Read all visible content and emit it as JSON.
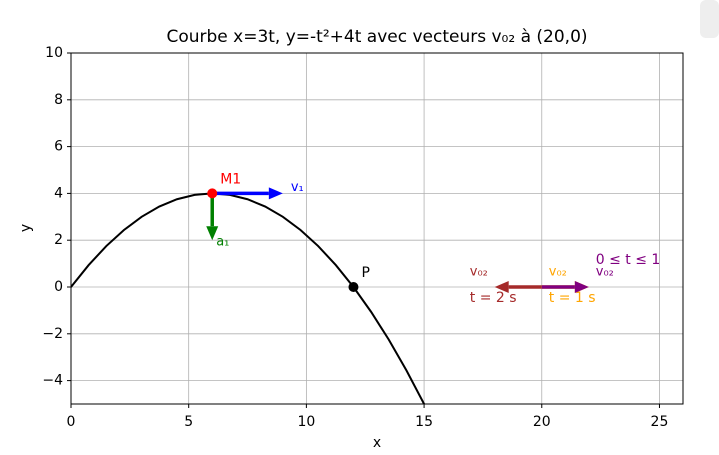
{
  "chart_data": {
    "type": "line",
    "title": "Courbe x=3t, y=-t²+4t avec vecteurs v₀₂ à (20,0)",
    "xlabel": "x",
    "ylabel": "y",
    "xlim": [
      0,
      26
    ],
    "ylim": [
      -5,
      10
    ],
    "xticks": [
      0,
      5,
      10,
      15,
      20,
      25
    ],
    "yticks": [
      {
        "value": -4,
        "label": "−4"
      },
      {
        "value": -2,
        "label": "−2"
      },
      0,
      2,
      4,
      6,
      8,
      10
    ],
    "grid": true,
    "series": [
      {
        "color": "#000000",
        "x": [
          0,
          0.75,
          1.5,
          2.25,
          3,
          3.75,
          4.5,
          5.25,
          6,
          6.75,
          7.5,
          8.25,
          9,
          9.75,
          10.5,
          11.25,
          12,
          12.75,
          13.5,
          14.25,
          15
        ],
        "values": [
          0,
          0.9375,
          1.75,
          2.4375,
          3,
          3.4375,
          3.75,
          3.9375,
          4,
          3.9375,
          3.75,
          3.4375,
          3,
          2.4375,
          1.75,
          0.9375,
          0,
          -1.0625,
          -2.25,
          -3.5625,
          -5
        ]
      }
    ],
    "points": [
      {
        "label": "M1",
        "x": 6,
        "y": 4,
        "color": "#ff0000"
      },
      {
        "label": "P",
        "x": 12,
        "y": 0,
        "color": "#000000"
      }
    ],
    "vectors": [
      {
        "label": "v₁",
        "x": 6,
        "y": 4,
        "dx": 3,
        "dy": 0,
        "color": "#0000ff"
      },
      {
        "label": "a₁",
        "x": 6,
        "y": 4,
        "dx": 0,
        "dy": -2,
        "color": "#008000"
      },
      {
        "label": "v₀₂",
        "note": "t = 2 s",
        "x": 20,
        "y": 0,
        "dx": -2,
        "dy": 0,
        "color": "#a52a2a"
      },
      {
        "label": "v₀₂",
        "note": "t = 1 s",
        "x": 20,
        "y": 0,
        "dx": 2,
        "dy": 0,
        "color": "#ffa500"
      },
      {
        "label": "v₀₂",
        "note": "0 ≤ t ≤ 1",
        "x": 20,
        "y": 0,
        "dx": 2,
        "dy": 0,
        "color": "#800080"
      }
    ]
  }
}
